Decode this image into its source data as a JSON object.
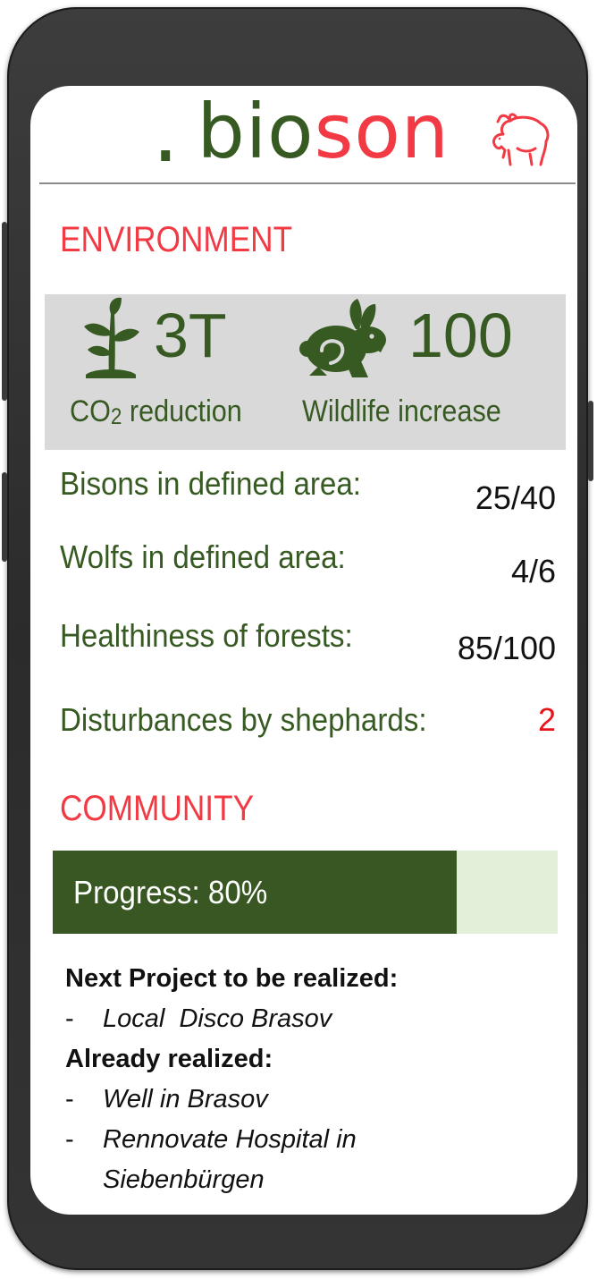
{
  "brand": {
    "dot": ".",
    "prefix": "bio",
    "suffix": "son",
    "icon": "bison-icon",
    "colors": {
      "green": "#375a22",
      "red": "#f23a44"
    }
  },
  "environment": {
    "title": "ENVIRONMENT",
    "stats": [
      {
        "icon": "plant-icon",
        "value": "3T",
        "label_prefix": "CO",
        "label_sub": "2",
        "label_suffix": " reduction"
      },
      {
        "icon": "rabbit-icon",
        "value": "100",
        "label": "Wildlife increase"
      }
    ],
    "metrics": [
      {
        "label": "Bisons in defined area:",
        "value": "25/40"
      },
      {
        "label": "Wolfs in defined area:",
        "value": "4/6"
      },
      {
        "label": "Healthiness of forests:",
        "value": "85/100"
      },
      {
        "label": "Disturbances by shephards:",
        "value": "2",
        "highlight": "#e8141c"
      }
    ]
  },
  "community": {
    "title": "COMMUNITY",
    "progress": {
      "label": "Progress: 80%",
      "fraction": 0.8
    },
    "next_heading": "Next Project to be realized:",
    "next_items": [
      "Local  Disco Brasov"
    ],
    "done_heading": "Already realized:",
    "done_items": [
      "Well in Brasov",
      "Rennovate Hospital in Siebenbürgen"
    ],
    "bullet": "-"
  }
}
